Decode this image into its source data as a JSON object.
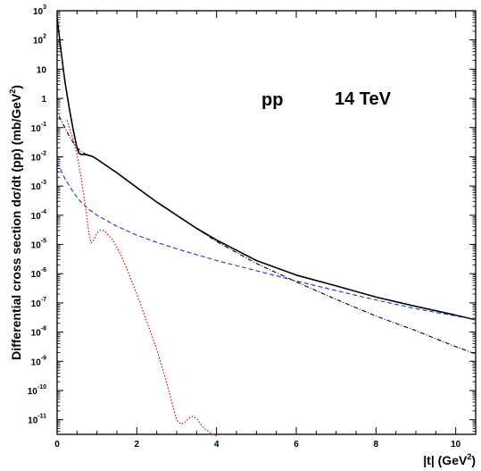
{
  "chart_data": {
    "type": "line",
    "xlabel": "|t| (GeV",
    "xlabel_sup": "2",
    "xlabel_end": ")",
    "ylabel": "Differential cross section dσ/dt (pp) (mb/GeV",
    "ylabel_sup": "2",
    "ylabel_end": ")",
    "annotations": [
      "pp",
      "14 TeV"
    ],
    "xlim": [
      0,
      10.5
    ],
    "ylim_log10": [
      -11.5,
      3
    ],
    "y_scale": "log",
    "grid": false,
    "legend": "none",
    "x_ticks": [
      {
        "value": 0,
        "label": "0"
      },
      {
        "value": 2,
        "label": "2"
      },
      {
        "value": 4,
        "label": "4"
      },
      {
        "value": 6,
        "label": "6"
      },
      {
        "value": 8,
        "label": "8"
      },
      {
        "value": 10,
        "label": "10"
      }
    ],
    "y_ticks": [
      {
        "exp": 3,
        "base": "10",
        "sup": "3"
      },
      {
        "exp": 2,
        "base": "10",
        "sup": "2"
      },
      {
        "exp": 1,
        "base": "10",
        "sup": ""
      },
      {
        "exp": 0,
        "base": "1",
        "sup": ""
      },
      {
        "exp": -1,
        "base": "10",
        "sup": "-1"
      },
      {
        "exp": -2,
        "base": "10",
        "sup": "-2"
      },
      {
        "exp": -3,
        "base": "10",
        "sup": "-3"
      },
      {
        "exp": -4,
        "base": "10",
        "sup": "-4"
      },
      {
        "exp": -5,
        "base": "10",
        "sup": "-5"
      },
      {
        "exp": -6,
        "base": "10",
        "sup": "-6"
      },
      {
        "exp": -7,
        "base": "10",
        "sup": "-7"
      },
      {
        "exp": -8,
        "base": "10",
        "sup": "-8"
      },
      {
        "exp": -9,
        "base": "10",
        "sup": "-9"
      },
      {
        "exp": -10,
        "base": "10",
        "sup": "-10"
      },
      {
        "exp": -11,
        "base": "10",
        "sup": "-11"
      }
    ],
    "series": [
      {
        "key": "total",
        "color": "#000000",
        "dash": "",
        "width": 1.6,
        "x": [
          0,
          0.05,
          0.1,
          0.15,
          0.2,
          0.3,
          0.4,
          0.5,
          0.55,
          0.6,
          0.65,
          0.7,
          0.8,
          0.9,
          1.0,
          1.5,
          2.0,
          2.5,
          3.0,
          3.5,
          4.0,
          5.0,
          6.0,
          7.0,
          8.0,
          9.0,
          10.0,
          10.5
        ],
        "y_log10": [
          2.75,
          2.2,
          1.6,
          1.05,
          0.55,
          -0.3,
          -1.05,
          -1.7,
          -1.88,
          -1.92,
          -1.92,
          -1.92,
          -1.95,
          -2.0,
          -2.08,
          -2.55,
          -3.05,
          -3.55,
          -4.0,
          -4.45,
          -4.85,
          -5.55,
          -6.05,
          -6.42,
          -6.8,
          -7.12,
          -7.42,
          -7.58
        ]
      },
      {
        "key": "dash-dot",
        "color": "#000000",
        "dash": "5,2,1,2",
        "width": 1.1,
        "x": [
          0.05,
          0.2,
          0.3,
          0.4,
          0.5,
          0.6,
          0.7,
          0.8,
          0.9,
          1.0,
          1.5,
          2.0,
          2.5,
          3.0,
          3.5,
          4.0,
          5.0,
          6.0,
          7.0,
          8.0,
          9.0,
          10.0,
          10.5
        ],
        "y_log10": [
          -0.6,
          -1.02,
          -1.28,
          -1.5,
          -1.68,
          -1.82,
          -1.9,
          -1.95,
          -2.0,
          -2.08,
          -2.55,
          -3.05,
          -3.55,
          -4.0,
          -4.45,
          -4.9,
          -5.65,
          -6.28,
          -6.88,
          -7.45,
          -7.95,
          -8.5,
          -8.75
        ]
      },
      {
        "key": "blue-dashed",
        "color": "#1a33d9",
        "dash": "5,3",
        "width": 1.1,
        "x": [
          0,
          0.2,
          0.4,
          0.6,
          0.8,
          1.0,
          1.5,
          2.0,
          2.5,
          3.0,
          3.5,
          4.0,
          5.0,
          6.0,
          7.0,
          8.0,
          9.0,
          10.0,
          10.5
        ],
        "y_log10": [
          -2.2,
          -2.75,
          -3.2,
          -3.55,
          -3.8,
          -4.0,
          -4.38,
          -4.68,
          -4.93,
          -5.15,
          -5.35,
          -5.55,
          -5.9,
          -6.25,
          -6.58,
          -6.9,
          -7.2,
          -7.45,
          -7.58
        ]
      },
      {
        "key": "red-dotted",
        "color": "#e00000",
        "dash": "1.5,2",
        "width": 1.2,
        "x": [
          0.25,
          0.4,
          0.5,
          0.6,
          0.7,
          0.8,
          0.85,
          0.9,
          1.0,
          1.1,
          1.2,
          1.4,
          1.6,
          1.8,
          2.0,
          2.2,
          2.5,
          2.7,
          2.9,
          3.0,
          3.1,
          3.2,
          3.3,
          3.4,
          3.5,
          3.6,
          3.7,
          3.8,
          3.9,
          4.0
        ],
        "y_log10": [
          -0.75,
          -1.4,
          -1.9,
          -2.7,
          -3.6,
          -4.6,
          -4.95,
          -4.9,
          -4.6,
          -4.5,
          -4.55,
          -4.85,
          -5.35,
          -6.0,
          -6.7,
          -7.45,
          -8.6,
          -9.5,
          -10.5,
          -11.0,
          -11.15,
          -11.1,
          -10.95,
          -10.88,
          -10.95,
          -11.15,
          -11.3,
          -11.4,
          -11.5,
          -11.55
        ]
      }
    ]
  }
}
